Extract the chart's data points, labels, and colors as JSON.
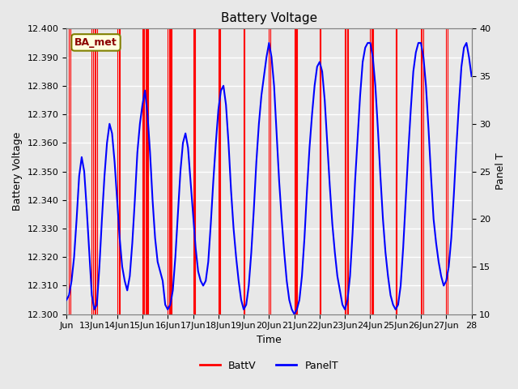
{
  "title": "Battery Voltage",
  "xlabel": "Time",
  "ylabel_left": "Battery Voltage",
  "ylabel_right": "Panel T",
  "ylim_left": [
    12.3,
    12.4
  ],
  "ylim_right": [
    10,
    40
  ],
  "yticks_left": [
    12.3,
    12.31,
    12.32,
    12.33,
    12.34,
    12.35,
    12.36,
    12.37,
    12.38,
    12.39,
    12.4
  ],
  "yticks_right": [
    10,
    15,
    20,
    25,
    30,
    35,
    40
  ],
  "xlim": [
    0,
    16
  ],
  "xtick_positions": [
    0,
    1,
    2,
    3,
    4,
    5,
    6,
    7,
    8,
    9,
    10,
    11,
    12,
    13,
    14,
    15,
    16
  ],
  "xtick_labels": [
    "Jun",
    "13Jun",
    "14Jun",
    "15Jun",
    "16Jun",
    "17Jun",
    "18Jun",
    "19Jun",
    "20Jun",
    "21Jun",
    "22Jun",
    "23Jun",
    "24Jun",
    "25Jun",
    "26Jun",
    "27Jun",
    "28"
  ],
  "annotation_text": "BA_met",
  "bg_color": "#e8e8e8",
  "plot_bg_color": "#e8e8e8",
  "grid_color": "white",
  "battv_color": "red",
  "panelt_color": "blue",
  "red_line_positions": [
    0.08,
    0.15,
    1.0,
    1.05,
    1.1,
    1.16,
    1.22,
    2.0,
    2.06,
    2.12,
    3.0,
    3.04,
    3.08,
    3.12,
    3.16,
    3.2,
    3.24,
    4.0,
    4.04,
    4.08,
    4.12,
    4.16,
    5.0,
    5.04,
    5.08,
    6.0,
    6.04,
    6.08,
    7.0,
    7.04,
    8.0,
    8.04,
    9.0,
    9.04,
    9.08,
    9.12,
    10.0,
    10.04,
    11.0,
    11.04,
    11.08,
    11.12,
    12.0,
    12.04,
    12.08,
    12.12,
    13.0,
    13.04,
    14.0,
    14.04,
    14.08,
    15.0,
    15.04
  ],
  "panel_t_x": [
    0.0,
    0.1,
    0.2,
    0.3,
    0.4,
    0.5,
    0.6,
    0.7,
    0.8,
    0.9,
    1.0,
    1.1,
    1.2,
    1.3,
    1.4,
    1.5,
    1.6,
    1.7,
    1.8,
    1.9,
    2.0,
    2.1,
    2.2,
    2.3,
    2.4,
    2.5,
    2.6,
    2.7,
    2.8,
    2.9,
    3.0,
    3.1,
    3.2,
    3.3,
    3.4,
    3.5,
    3.6,
    3.7,
    3.8,
    3.9,
    4.0,
    4.1,
    4.2,
    4.3,
    4.4,
    4.5,
    4.6,
    4.7,
    4.8,
    4.9,
    5.0,
    5.1,
    5.2,
    5.3,
    5.4,
    5.5,
    5.6,
    5.7,
    5.8,
    5.9,
    6.0,
    6.1,
    6.2,
    6.3,
    6.4,
    6.5,
    6.6,
    6.7,
    6.8,
    6.9,
    7.0,
    7.1,
    7.2,
    7.3,
    7.4,
    7.5,
    7.6,
    7.7,
    7.8,
    7.9,
    8.0,
    8.1,
    8.2,
    8.3,
    8.4,
    8.5,
    8.6,
    8.7,
    8.8,
    8.9,
    9.0,
    9.1,
    9.2,
    9.3,
    9.4,
    9.5,
    9.6,
    9.7,
    9.8,
    9.9,
    10.0,
    10.1,
    10.2,
    10.3,
    10.4,
    10.5,
    10.6,
    10.7,
    10.8,
    10.9,
    11.0,
    11.1,
    11.2,
    11.3,
    11.4,
    11.5,
    11.6,
    11.7,
    11.8,
    11.9,
    12.0,
    12.1,
    12.2,
    12.3,
    12.4,
    12.5,
    12.6,
    12.7,
    12.8,
    12.9,
    13.0,
    13.1,
    13.2,
    13.3,
    13.4,
    13.5,
    13.6,
    13.7,
    13.8,
    13.9,
    14.0,
    14.1,
    14.2,
    14.3,
    14.4,
    14.5,
    14.6,
    14.7,
    14.8,
    14.9,
    15.0,
    15.1,
    15.2,
    15.3,
    15.4,
    15.5,
    15.6,
    15.7,
    15.8,
    15.9,
    16.0
  ],
  "panel_t_y": [
    11.5,
    12.0,
    13.5,
    16.0,
    20.0,
    24.5,
    26.5,
    25.0,
    21.0,
    16.5,
    12.0,
    10.5,
    11.0,
    15.0,
    20.0,
    24.5,
    28.0,
    30.0,
    29.0,
    26.0,
    22.0,
    18.0,
    15.0,
    13.5,
    12.5,
    14.0,
    17.5,
    22.0,
    27.0,
    30.0,
    32.0,
    33.5,
    31.0,
    27.0,
    22.0,
    18.0,
    15.5,
    14.5,
    13.5,
    11.0,
    10.5,
    11.0,
    12.5,
    16.0,
    20.5,
    25.0,
    28.0,
    29.0,
    27.5,
    24.0,
    20.5,
    17.0,
    14.5,
    13.5,
    13.0,
    13.5,
    15.5,
    19.5,
    24.0,
    28.0,
    31.5,
    33.5,
    34.0,
    32.0,
    28.0,
    23.0,
    19.0,
    16.0,
    13.5,
    11.5,
    10.5,
    11.0,
    13.0,
    16.5,
    21.0,
    26.0,
    30.0,
    33.0,
    35.0,
    37.0,
    38.5,
    37.0,
    34.0,
    29.0,
    24.0,
    20.0,
    16.5,
    13.5,
    11.5,
    10.5,
    10.0,
    10.5,
    11.5,
    14.0,
    18.0,
    23.0,
    27.5,
    31.0,
    34.0,
    36.0,
    36.5,
    35.5,
    32.5,
    28.0,
    23.5,
    19.5,
    16.5,
    14.0,
    12.5,
    11.0,
    10.5,
    11.5,
    14.0,
    18.5,
    24.0,
    28.5,
    33.0,
    36.5,
    38.0,
    38.5,
    38.5,
    37.0,
    34.0,
    29.5,
    24.5,
    20.0,
    16.5,
    14.0,
    12.0,
    11.0,
    10.5,
    11.0,
    13.0,
    17.0,
    22.0,
    27.0,
    31.5,
    35.5,
    37.5,
    38.5,
    38.5,
    37.0,
    34.0,
    29.5,
    24.5,
    20.0,
    17.5,
    15.5,
    14.0,
    13.0,
    13.5,
    15.0,
    18.0,
    22.5,
    27.5,
    32.0,
    36.0,
    38.0,
    38.5,
    37.0,
    35.0
  ]
}
